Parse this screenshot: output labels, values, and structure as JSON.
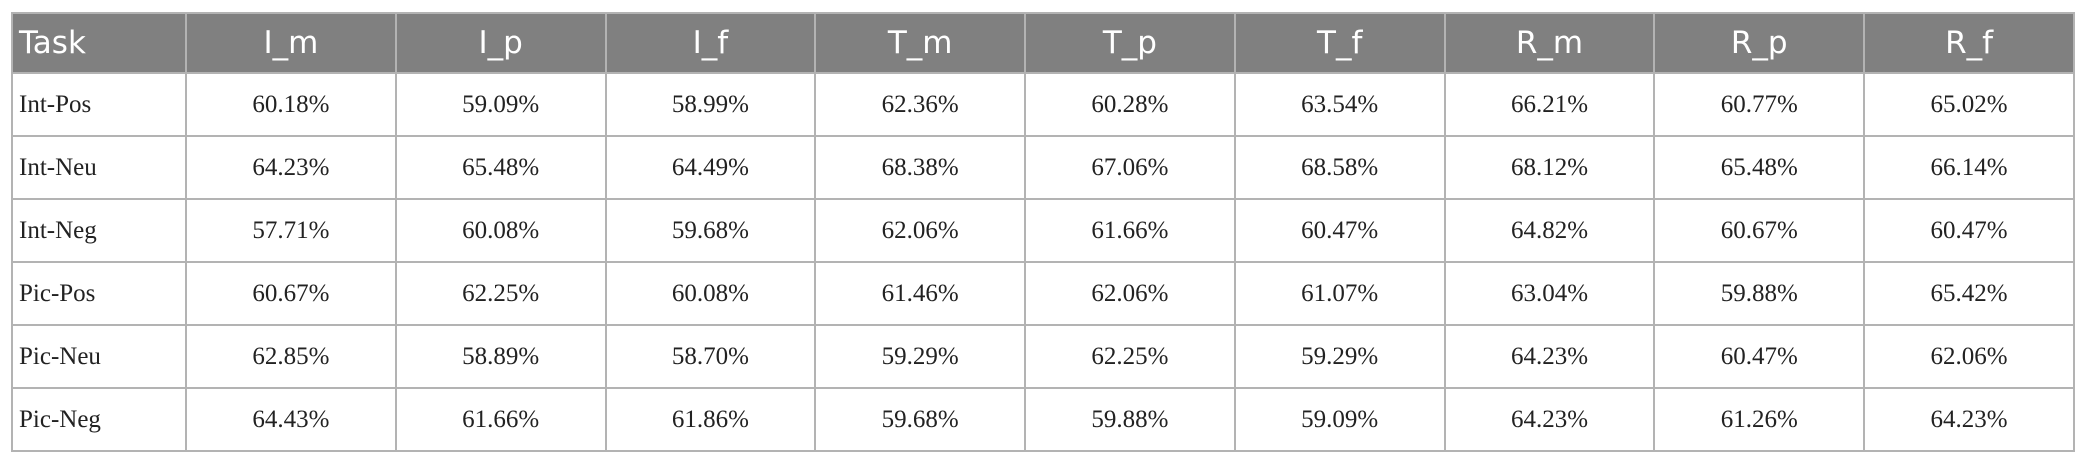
{
  "table": {
    "header": [
      "Task",
      "I_m",
      "I_p",
      "I_f",
      "T_m",
      "T_p",
      "T_f",
      "R_m",
      "R_p",
      "R_f"
    ],
    "rows": [
      [
        "Int-Pos",
        "60.18%",
        "59.09%",
        "58.99%",
        "62.36%",
        "60.28%",
        "63.54%",
        "66.21%",
        "60.77%",
        "65.02%"
      ],
      [
        "Int-Neu",
        "64.23%",
        "65.48%",
        "64.49%",
        "68.38%",
        "67.06%",
        "68.58%",
        "68.12%",
        "65.48%",
        "66.14%"
      ],
      [
        "Int-Neg",
        "57.71%",
        "60.08%",
        "59.68%",
        "62.06%",
        "61.66%",
        "60.47%",
        "64.82%",
        "60.67%",
        "60.47%"
      ],
      [
        "Pic-Pos",
        "60.67%",
        "62.25%",
        "60.08%",
        "61.46%",
        "62.06%",
        "61.07%",
        "63.04%",
        "59.88%",
        "65.42%"
      ],
      [
        "Pic-Neu",
        "62.85%",
        "58.89%",
        "58.70%",
        "59.29%",
        "62.25%",
        "59.29%",
        "64.23%",
        "60.47%",
        "62.06%"
      ],
      [
        "Pic-Neg",
        "64.43%",
        "61.66%",
        "61.86%",
        "59.68%",
        "59.88%",
        "59.09%",
        "64.23%",
        "61.26%",
        "64.23%"
      ]
    ]
  }
}
